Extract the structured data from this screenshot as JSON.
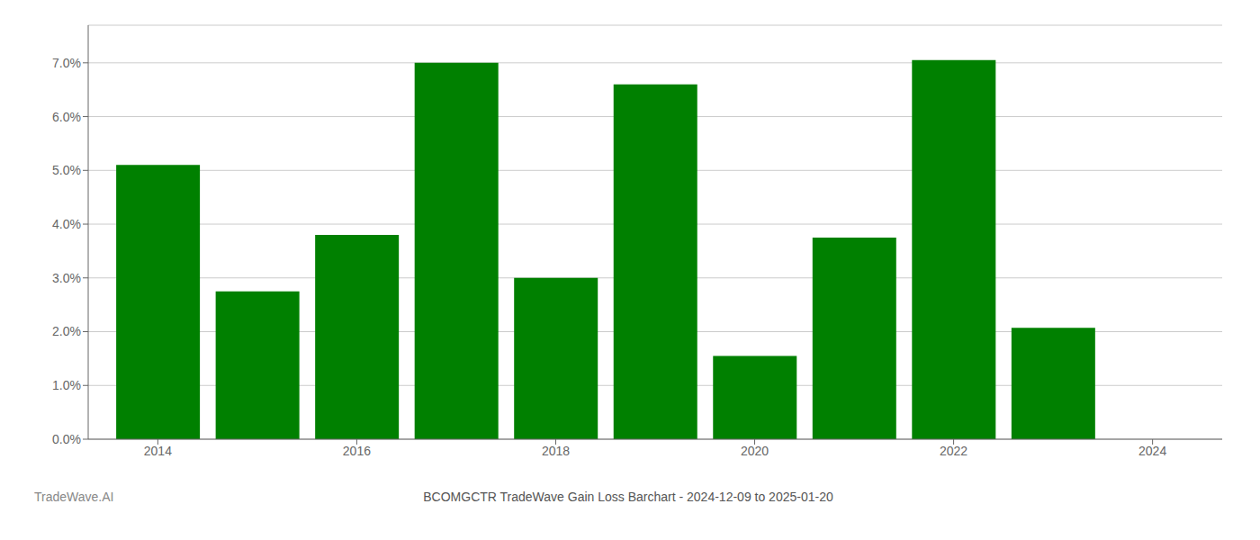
{
  "chart_data": {
    "type": "bar",
    "title": "BCOMGCTR TradeWave Gain Loss Barchart - 2024-12-09 to 2025-01-20",
    "annotations": [
      "TradeWave.AI"
    ],
    "x": [
      2014,
      2015,
      2016,
      2017,
      2018,
      2019,
      2020,
      2021,
      2022,
      2023
    ],
    "values": [
      0.051,
      0.0275,
      0.038,
      0.07,
      0.03,
      0.066,
      0.0155,
      0.0375,
      0.0705,
      0.0207
    ],
    "color": "#008000",
    "xlim": [
      2013.3,
      2024.7
    ],
    "xticks": [
      2014,
      2016,
      2018,
      2020,
      2022,
      2024
    ],
    "ylim": [
      0.0,
      0.077
    ],
    "yticks": [
      {
        "value": 0.0,
        "label": "0.0%"
      },
      {
        "value": 0.01,
        "label": "1.0%"
      },
      {
        "value": 0.02,
        "label": "2.0%"
      },
      {
        "value": 0.03,
        "label": "3.0%"
      },
      {
        "value": 0.04,
        "label": "4.0%"
      },
      {
        "value": 0.05,
        "label": "5.0%"
      },
      {
        "value": 0.06,
        "label": "6.0%"
      },
      {
        "value": 0.07,
        "label": "7.0%"
      }
    ],
    "grid": true
  }
}
